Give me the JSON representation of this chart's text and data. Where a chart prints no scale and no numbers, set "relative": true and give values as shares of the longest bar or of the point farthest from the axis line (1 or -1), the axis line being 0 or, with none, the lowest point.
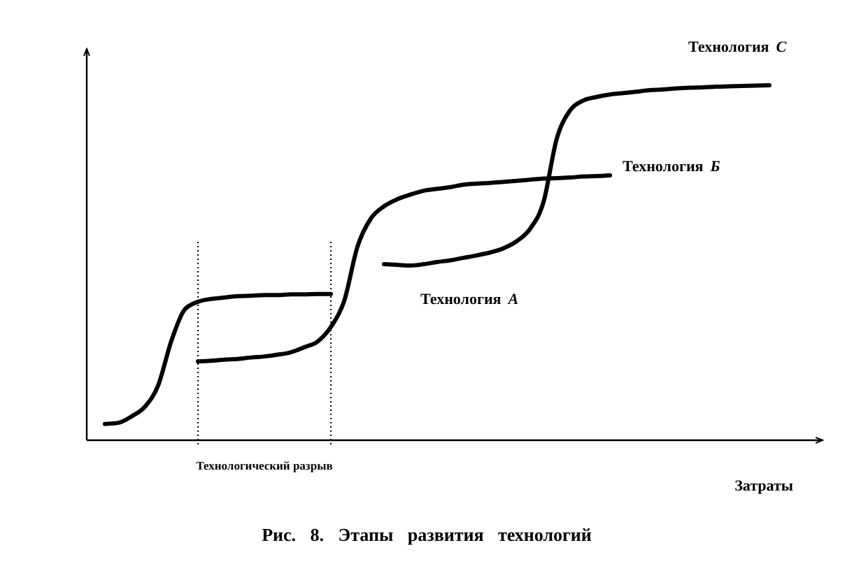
{
  "chart_data": {
    "type": "line",
    "title": "Рис. 8. Этапы развития технологий",
    "xlabel": "Затраты",
    "categories": [
      null,
      null,
      null,
      null,
      null,
      null,
      null,
      null,
      null,
      null,
      null,
      null,
      null,
      null,
      null,
      null,
      null,
      null,
      null,
      null,
      null,
      null,
      null,
      null,
      null,
      null,
      null,
      null,
      null,
      null,
      null,
      null,
      null,
      null,
      null,
      null,
      null,
      null,
      null,
      null,
      null,
      null,
      null,
      null,
      null,
      null,
      null,
      null,
      null,
      null,
      null
    ],
    "relative": true,
    "line_style": "solid",
    "series": [
      {
        "color": "#000000",
        "values": [
          0.046,
          0.049,
          0.067,
          0.094,
          0.154,
          0.28,
          0.368,
          0.39,
          0.398,
          0.402,
          0.406,
          0.407,
          0.409,
          0.409,
          0.411,
          0.411,
          0.412,
          0.412,
          null,
          null,
          null,
          null,
          null,
          null,
          null,
          null,
          null,
          null,
          null,
          null,
          null,
          null,
          null,
          null,
          null,
          null,
          null,
          null,
          null,
          null,
          null,
          null,
          null,
          null,
          null,
          null,
          null,
          null,
          null,
          null,
          null
        ]
      },
      {
        "name": "Технология Б",
        "color": "#000000",
        "values": [
          null,
          null,
          null,
          null,
          null,
          null,
          null,
          0.222,
          0.224,
          0.227,
          0.229,
          0.233,
          0.236,
          0.241,
          0.248,
          0.262,
          0.278,
          0.319,
          0.392,
          0.545,
          0.624,
          0.659,
          0.679,
          0.692,
          0.703,
          0.708,
          0.713,
          0.72,
          0.723,
          0.725,
          0.728,
          0.731,
          0.734,
          0.737,
          0.738,
          0.74,
          0.743,
          0.744,
          0.746,
          null,
          null,
          null,
          null,
          null,
          null,
          null,
          null,
          null,
          null,
          null,
          null
        ]
      },
      {
        "name": "Технология С",
        "color": "#000000",
        "values": [
          null,
          null,
          null,
          null,
          null,
          null,
          null,
          null,
          null,
          null,
          null,
          null,
          null,
          null,
          null,
          null,
          null,
          null,
          null,
          null,
          null,
          0.496,
          0.494,
          0.492,
          0.496,
          0.502,
          0.507,
          0.514,
          0.521,
          0.529,
          0.541,
          0.561,
          0.596,
          0.671,
          0.85,
          0.929,
          0.957,
          0.967,
          0.974,
          0.978,
          0.982,
          0.986,
          0.988,
          0.991,
          0.993,
          0.994,
          0.996,
          0.997,
          0.998,
          0.999,
          1
        ]
      }
    ],
    "annotations": [
      "Технологический разрыв",
      "Технология А"
    ]
  }
}
